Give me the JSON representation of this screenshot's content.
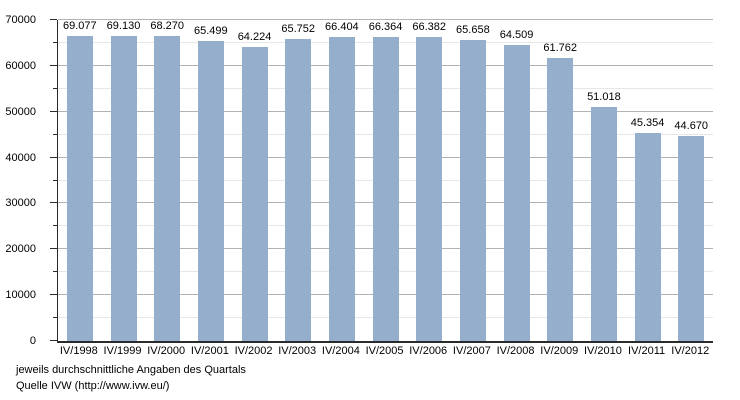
{
  "chart_data": {
    "type": "bar",
    "categories": [
      "IV/1998",
      "IV/1999",
      "IV/2000",
      "IV/2001",
      "IV/2002",
      "IV/2003",
      "IV/2004",
      "IV/2005",
      "IV/2006",
      "IV/2007",
      "IV/2008",
      "IV/2009",
      "IV/2010",
      "IV/2011",
      "IV/2012"
    ],
    "values": [
      69077,
      69130,
      68270,
      65499,
      64224,
      65752,
      66404,
      66364,
      66382,
      65658,
      64509,
      61762,
      51018,
      45354,
      44670
    ],
    "value_labels": [
      "69.077",
      "69.130",
      "68.270",
      "65.499",
      "64.224",
      "65.752",
      "66.404",
      "66.364",
      "66.382",
      "65.658",
      "64.509",
      "61.762",
      "51.018",
      "45.354",
      "44.670"
    ],
    "title": "",
    "xlabel": "",
    "ylabel": "",
    "ylim": [
      0,
      70000
    ],
    "y_major_step": 10000,
    "y_minor_step": 5000,
    "y_tick_labels": [
      "0",
      "10000",
      "20000",
      "30000",
      "40000",
      "50000",
      "60000",
      "70000"
    ],
    "grid": true,
    "legend_position": "none"
  },
  "footer": {
    "line1": "jeweils durchschnittliche Angaben des Quartals",
    "line2": "Quelle IVW (http://www.ivw.eu/)"
  },
  "colors": {
    "bar": "#95AECB",
    "grid_major": "#b3b3b3",
    "grid_minor": "#e7e7e7",
    "axis": "#2b2b2b",
    "text": "#000000",
    "background": "#ffffff"
  }
}
